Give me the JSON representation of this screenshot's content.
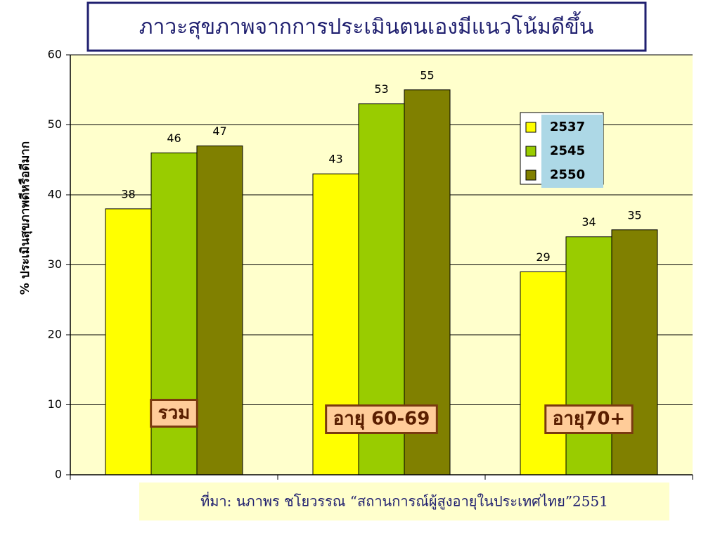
{
  "chart_data": {
    "type": "bar",
    "title": "ภาวะสุขภาพจากการประเมินตนเองมีแนวโน้มดีขึ้น",
    "y_label": "% ประเมินสุขภาพดีหรือดีมาก",
    "source": "ที่มา: นภาพร ชโยวรรณ “สถานการณ์ผู้สูงอายุในประเทศไทย”2551",
    "categories": [
      "รวม",
      "อายุ 60-69",
      "อายุ70+"
    ],
    "series": [
      {
        "name": "2537",
        "color": "#ffff00",
        "values": [
          38,
          43,
          29
        ]
      },
      {
        "name": "2545",
        "color": "#99cc00",
        "values": [
          46,
          53,
          34
        ]
      },
      {
        "name": "2550",
        "color": "#808000",
        "values": [
          47,
          55,
          35
        ]
      }
    ],
    "ylim": [
      0,
      60
    ],
    "yticks": [
      0,
      10,
      20,
      30,
      40,
      50,
      60
    ],
    "grid": true
  }
}
